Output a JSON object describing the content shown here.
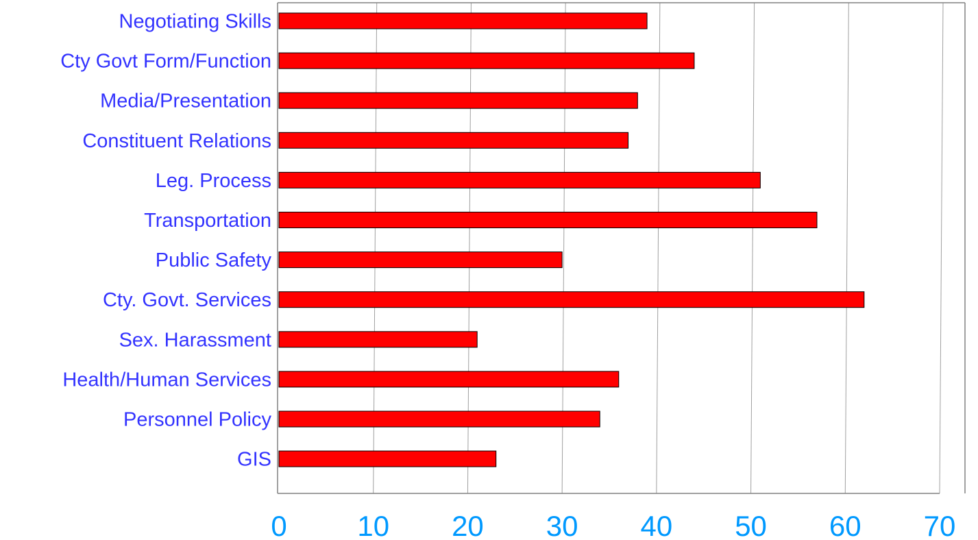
{
  "chart_data": {
    "type": "bar",
    "orientation": "horizontal",
    "title": "",
    "xlabel": "",
    "ylabel": "",
    "categories": [
      "Negotiating Skills",
      "Cty Govt Form/Function",
      "Media/Presentation",
      "Constituent Relations",
      "Leg. Process",
      "Transportation",
      "Public Safety",
      "Cty. Govt. Services",
      "Sex. Harassment",
      "Health/Human Services",
      "Personnel Policy",
      "GIS"
    ],
    "values": [
      39,
      44,
      38,
      37,
      51,
      57,
      30,
      62,
      21,
      36,
      34,
      23
    ],
    "xlim": [
      0,
      70
    ],
    "xticks": [
      "0",
      "10",
      "20",
      "30",
      "40",
      "50",
      "60",
      "70"
    ],
    "grid": true,
    "legend": "none",
    "colors": {
      "bar": "#ff0000",
      "bar_outline": "#000000",
      "category_label": "#3333ff",
      "tick_label": "#0099ff",
      "grid": "#a0a0a0",
      "frame": "#808080"
    }
  }
}
